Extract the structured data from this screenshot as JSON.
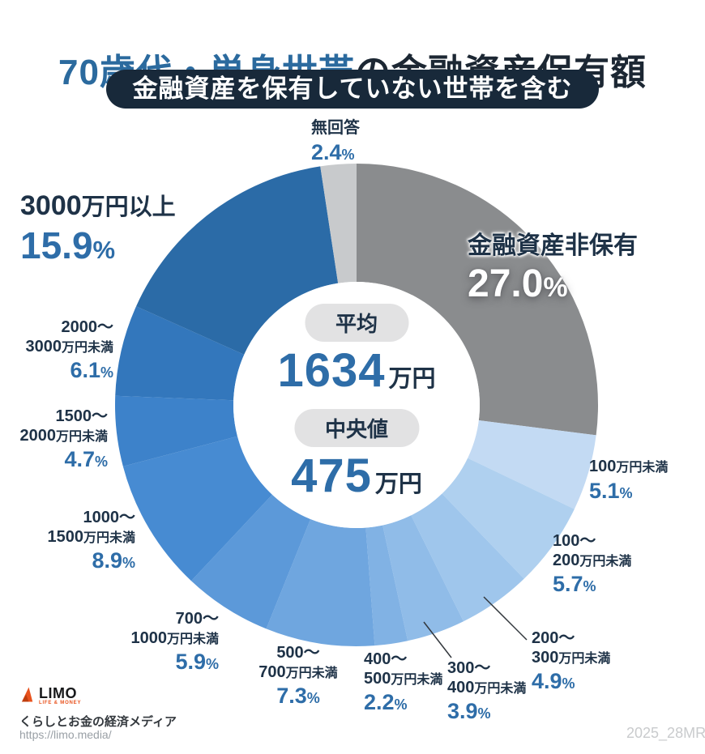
{
  "header": {
    "title_highlight": "70歳代・単身世帯",
    "title_rest": "の金融資産保有額",
    "subtitle": "金融資産を保有していない世帯を含む"
  },
  "center": {
    "avg_label": "平均",
    "avg_value": "1634",
    "avg_unit": "万円",
    "median_label": "中央値",
    "median_value": "475",
    "median_unit": "万円"
  },
  "chart_data": {
    "type": "pie",
    "donut": true,
    "title": "70歳代・単身世帯の金融資産保有額",
    "subtitle": "金融資産を保有していない世帯を含む",
    "unit": "%",
    "start_angle_deg": 0,
    "direction": "clockwise",
    "inner_radius_ratio": 0.51,
    "center_stats": {
      "average_label": "平均",
      "average": "1634万円",
      "median_label": "中央値",
      "median": "475万円"
    },
    "segments": [
      {
        "id": "none",
        "lines": [
          "金融資産非保有"
        ],
        "value": 27.0,
        "color": "#8a8c8e"
      },
      {
        "id": "lt100",
        "lines": [
          "100万円未満"
        ],
        "value": 5.1,
        "color": "#c3daf3"
      },
      {
        "id": "s100_200",
        "lines": [
          "100〜",
          "200万円未満"
        ],
        "value": 5.7,
        "color": "#afd0ef"
      },
      {
        "id": "s200_300",
        "lines": [
          "200〜",
          "300万円未満"
        ],
        "value": 4.9,
        "color": "#9fc6ec"
      },
      {
        "id": "s300_400",
        "lines": [
          "300〜",
          "400万円未満"
        ],
        "value": 3.9,
        "color": "#90bce8"
      },
      {
        "id": "s400_500",
        "lines": [
          "400〜",
          "500万円未満"
        ],
        "value": 2.2,
        "color": "#81b2e4"
      },
      {
        "id": "s500_700",
        "lines": [
          "500〜",
          "700万円未満"
        ],
        "value": 7.3,
        "color": "#6fa6df"
      },
      {
        "id": "s700_1000",
        "lines": [
          "700〜",
          "1000万円未満"
        ],
        "value": 5.9,
        "color": "#5c99d9"
      },
      {
        "id": "s1000_1500",
        "lines": [
          "1000〜",
          "1500万円未満"
        ],
        "value": 8.9,
        "color": "#478bd2"
      },
      {
        "id": "s1500_2000",
        "lines": [
          "1500〜",
          "2000万円未満"
        ],
        "value": 4.7,
        "color": "#3d82ca"
      },
      {
        "id": "s2000_3000",
        "lines": [
          "2000〜",
          "3000万円未満"
        ],
        "value": 6.1,
        "color": "#3377bc"
      },
      {
        "id": "over3000",
        "lines": [
          "3000万円以上"
        ],
        "value": 15.9,
        "color": "#2b6ba7"
      },
      {
        "id": "noanswer",
        "lines": [
          "無回答"
        ],
        "value": 2.4,
        "color": "#c8cacc"
      }
    ]
  },
  "footer": {
    "logo_text": "LIMO",
    "logo_sub": "LIFE & MONEY",
    "tagline": "くらしとお金の経済メディア",
    "url": "https://limo.media/",
    "watermark": "2025_28MR"
  },
  "colors": {
    "accent_blue": "#2e6da8",
    "title_blue": "#2b6a9e",
    "label_dark": "#1e3247",
    "title_dark": "#1c2733",
    "pill_bg": "#18293a",
    "center_pill": "#e2e2e3",
    "logo_orange": "#e8521d",
    "watermark": "#c9cbcd"
  }
}
